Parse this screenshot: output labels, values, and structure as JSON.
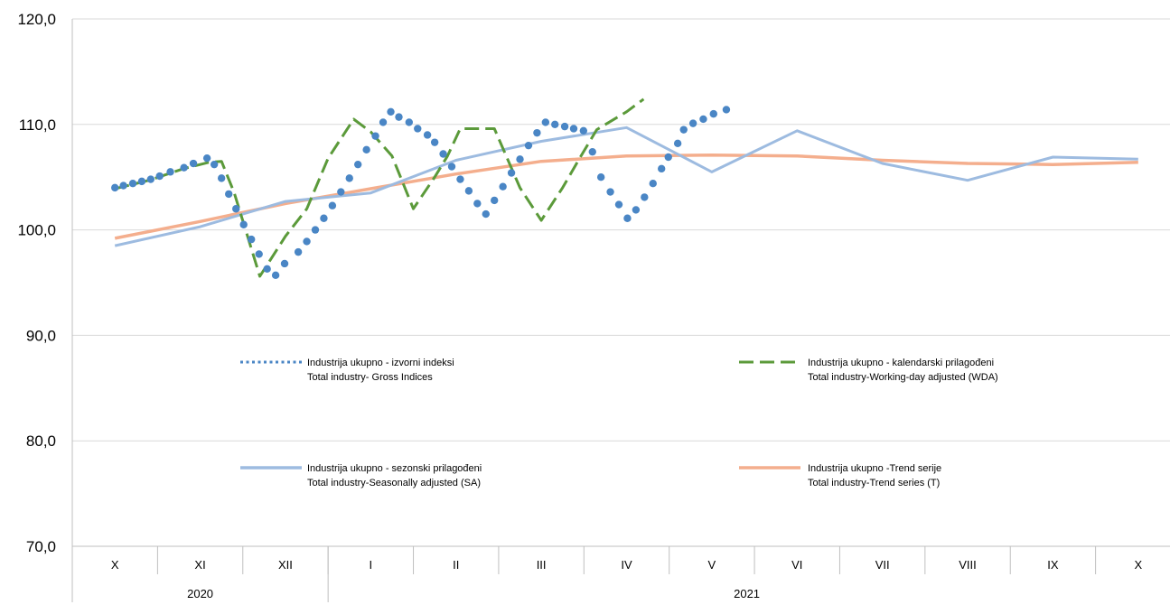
{
  "chart_data": {
    "type": "line",
    "y_ticks": [
      "120,0",
      "110,0",
      "100,0",
      "90,0",
      "80,0",
      "70,0"
    ],
    "y_tick_values": [
      120,
      110,
      100,
      90,
      80,
      70
    ],
    "ylim": [
      70,
      120
    ],
    "grid": true,
    "months": [
      "X",
      "XI",
      "XII",
      "I",
      "II",
      "III",
      "IV",
      "V",
      "VI",
      "VII",
      "VIII",
      "IX",
      "X"
    ],
    "years": [
      {
        "label": "2020",
        "months": 3
      },
      {
        "label": "2021",
        "months": 10
      }
    ],
    "monthly_series": [
      {
        "key": "sa",
        "name_line1": "Industrija ukupno - sezonski prilagođeni",
        "name_line2": "Total industry-Seasonally adjusted (SA)",
        "color": "#9DBBE0",
        "values": [
          98.5,
          100.3,
          102.7,
          103.5,
          106.6,
          108.4,
          109.7,
          105.5,
          109.4,
          106.3,
          104.7,
          106.9,
          106.7
        ]
      },
      {
        "key": "trend",
        "name_line1": "Industrija ukupno -Trend serije",
        "name_line2": "Total industry-Trend series (T)",
        "color": "#F4AE8D",
        "values": [
          99.2,
          100.8,
          102.5,
          103.9,
          105.3,
          106.5,
          107.0,
          107.1,
          107.0,
          106.6,
          106.3,
          106.2,
          106.4
        ]
      }
    ],
    "daily_series": [
      {
        "key": "wda",
        "name_line1": "Industrija ukupno - kalendarski prilagođeni",
        "name_line2": "Total industry-Working-day adjusted (WDA)",
        "color": "#5B9A3A",
        "points": [
          [
            0,
            103.9
          ],
          [
            0.8,
            104.7
          ],
          [
            1.6,
            105.8
          ],
          [
            2.2,
            106.4
          ],
          [
            2.5,
            106.5
          ],
          [
            2.8,
            103.5
          ],
          [
            3.4,
            95.6
          ],
          [
            4.0,
            99.4
          ],
          [
            4.5,
            102.0
          ],
          [
            5.0,
            106.8
          ],
          [
            5.6,
            110.5
          ],
          [
            6.0,
            109.3
          ],
          [
            6.5,
            107.0
          ],
          [
            7.0,
            102.0
          ],
          [
            7.5,
            105.0
          ],
          [
            7.8,
            107.0
          ],
          [
            8.1,
            109.6
          ],
          [
            8.9,
            109.6
          ],
          [
            9.5,
            104.0
          ],
          [
            10.0,
            100.9
          ],
          [
            10.5,
            104.0
          ],
          [
            10.9,
            106.8
          ],
          [
            11.3,
            109.5
          ],
          [
            12.0,
            111.2
          ],
          [
            12.4,
            112.4
          ]
        ]
      },
      {
        "key": "gross",
        "name_line1": "Industrija ukupno - izvorni indeksi",
        "name_line2": "Total industry- Gross Indices",
        "color": "#4A86C5",
        "points": [
          [
            0,
            104.0
          ],
          [
            0.2,
            104.2
          ],
          [
            0.42,
            104.4
          ],
          [
            0.63,
            104.6
          ],
          [
            0.84,
            104.8
          ],
          [
            1.05,
            105.1
          ],
          [
            1.3,
            105.5
          ],
          [
            1.62,
            105.9
          ],
          [
            1.84,
            106.3
          ],
          [
            2.16,
            106.8
          ],
          [
            2.33,
            106.2
          ],
          [
            2.5,
            104.9
          ],
          [
            2.67,
            103.4
          ],
          [
            2.84,
            102.0
          ],
          [
            3.02,
            100.5
          ],
          [
            3.2,
            99.1
          ],
          [
            3.38,
            97.7
          ],
          [
            3.57,
            96.3
          ],
          [
            3.77,
            95.7
          ],
          [
            3.98,
            96.8
          ],
          [
            4.3,
            97.9
          ],
          [
            4.5,
            98.9
          ],
          [
            4.7,
            100.0
          ],
          [
            4.9,
            101.1
          ],
          [
            5.1,
            102.3
          ],
          [
            5.3,
            103.6
          ],
          [
            5.5,
            104.9
          ],
          [
            5.7,
            106.2
          ],
          [
            5.9,
            107.6
          ],
          [
            6.11,
            108.9
          ],
          [
            6.29,
            110.2
          ],
          [
            6.47,
            111.2
          ],
          [
            6.66,
            110.7
          ],
          [
            6.9,
            110.2
          ],
          [
            7.1,
            109.6
          ],
          [
            7.33,
            109.0
          ],
          [
            7.5,
            108.3
          ],
          [
            7.7,
            107.2
          ],
          [
            7.9,
            106.0
          ],
          [
            8.1,
            104.8
          ],
          [
            8.3,
            103.7
          ],
          [
            8.5,
            102.5
          ],
          [
            8.7,
            101.5
          ],
          [
            8.9,
            102.8
          ],
          [
            9.1,
            104.1
          ],
          [
            9.3,
            105.4
          ],
          [
            9.5,
            106.7
          ],
          [
            9.7,
            108.0
          ],
          [
            9.9,
            109.2
          ],
          [
            10.1,
            110.2
          ],
          [
            10.32,
            110.0
          ],
          [
            10.55,
            109.8
          ],
          [
            10.76,
            109.6
          ],
          [
            10.99,
            109.4
          ],
          [
            11.2,
            107.4
          ],
          [
            11.4,
            105.0
          ],
          [
            11.62,
            103.6
          ],
          [
            11.82,
            102.4
          ],
          [
            12.02,
            101.1
          ],
          [
            12.22,
            101.9
          ],
          [
            12.42,
            103.1
          ],
          [
            12.62,
            104.4
          ],
          [
            12.82,
            105.8
          ],
          [
            12.98,
            106.9
          ],
          [
            13.2,
            108.2
          ],
          [
            13.34,
            109.5
          ],
          [
            13.56,
            110.1
          ],
          [
            13.8,
            110.5
          ],
          [
            14.04,
            111.0
          ],
          [
            14.34,
            111.4
          ]
        ]
      }
    ]
  }
}
